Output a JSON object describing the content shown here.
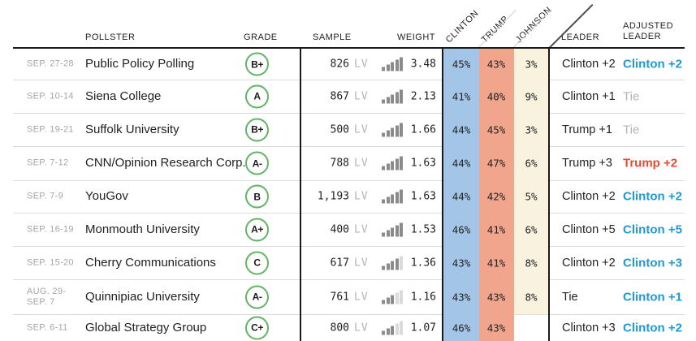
{
  "header": {
    "pollster": "POLLSTER",
    "grade": "GRADE",
    "sample": "SAMPLE",
    "weight": "WEIGHT",
    "leader": "LEADER",
    "adjusted_leader": "ADJUSTED\nLEADER",
    "candidates": [
      "CLINTON",
      "TRUMP",
      "JOHNSON"
    ]
  },
  "colors": {
    "clinton_cell": "#a3c6e8",
    "trump_cell": "#f1a58c",
    "johnson_cell": "#f9f2de",
    "blue_text": "#1f99d6",
    "red_text": "#e84a31",
    "gray_text": "#b3b3b3",
    "grade_ring": "#62b564",
    "rule_dark": "#1a1a1a"
  },
  "rows": [
    {
      "date": "SEP. 27-28",
      "pollster": "Public Policy Polling",
      "grade": "B+",
      "sample": "826",
      "sample_type": "LV",
      "weight": "3.48",
      "bars_filled": 5,
      "clinton": "45%",
      "trump": "43%",
      "johnson": "3%",
      "leader": "Clinton +2",
      "adjusted": "Clinton +2",
      "adjusted_color": "blue"
    },
    {
      "date": "SEP. 10-14",
      "pollster": "Siena College",
      "grade": "A",
      "sample": "867",
      "sample_type": "LV",
      "weight": "2.13",
      "bars_filled": 5,
      "clinton": "41%",
      "trump": "40%",
      "johnson": "9%",
      "leader": "Clinton +1",
      "adjusted": "Tie",
      "adjusted_color": "gray"
    },
    {
      "date": "SEP. 19-21",
      "pollster": "Suffolk University",
      "grade": "B+",
      "sample": "500",
      "sample_type": "LV",
      "weight": "1.66",
      "bars_filled": 5,
      "clinton": "44%",
      "trump": "45%",
      "johnson": "3%",
      "leader": "Trump +1",
      "adjusted": "Tie",
      "adjusted_color": "gray"
    },
    {
      "date": "SEP. 7-12",
      "pollster": "CNN/Opinion Research Corp.",
      "grade": "A-",
      "sample": "788",
      "sample_type": "LV",
      "weight": "1.63",
      "bars_filled": 5,
      "clinton": "44%",
      "trump": "47%",
      "johnson": "6%",
      "leader": "Trump +3",
      "adjusted": "Trump +2",
      "adjusted_color": "red"
    },
    {
      "date": "SEP. 7-9",
      "pollster": "YouGov",
      "grade": "B",
      "sample": "1,193",
      "sample_type": "LV",
      "weight": "1.63",
      "bars_filled": 5,
      "clinton": "44%",
      "trump": "42%",
      "johnson": "5%",
      "leader": "Clinton +2",
      "adjusted": "Clinton +2",
      "adjusted_color": "blue"
    },
    {
      "date": "SEP. 16-19",
      "pollster": "Monmouth University",
      "grade": "A+",
      "sample": "400",
      "sample_type": "LV",
      "weight": "1.53",
      "bars_filled": 5,
      "clinton": "46%",
      "trump": "41%",
      "johnson": "6%",
      "leader": "Clinton +5",
      "adjusted": "Clinton +5",
      "adjusted_color": "blue"
    },
    {
      "date": "SEP. 15-20",
      "pollster": "Cherry Communications",
      "grade": "C",
      "sample": "617",
      "sample_type": "LV",
      "weight": "1.36",
      "bars_filled": 4,
      "clinton": "43%",
      "trump": "41%",
      "johnson": "8%",
      "leader": "Clinton +2",
      "adjusted": "Clinton +3",
      "adjusted_color": "blue"
    },
    {
      "date": "AUG. 29-\nSEP. 7",
      "pollster": "Quinnipiac University",
      "grade": "A-",
      "sample": "761",
      "sample_type": "LV",
      "weight": "1.16",
      "bars_filled": 3,
      "clinton": "43%",
      "trump": "43%",
      "johnson": "8%",
      "leader": "Tie",
      "adjusted": "Clinton +1",
      "adjusted_color": "blue"
    },
    {
      "date": "SEP. 6-11",
      "pollster": "Global Strategy Group",
      "grade": "C+",
      "sample": "800",
      "sample_type": "LV",
      "weight": "1.07",
      "bars_filled": 3,
      "clinton": "46%",
      "trump": "43%",
      "johnson": "",
      "leader": "Clinton +3",
      "adjusted": "Clinton +2",
      "adjusted_color": "blue"
    }
  ],
  "layout_note_values": {
    "row_tops": [
      60,
      98,
      139,
      180,
      222,
      262,
      303,
      344,
      387
    ],
    "row_bottoms": [
      98,
      139,
      180,
      222,
      262,
      303,
      344,
      387,
      420
    ]
  }
}
